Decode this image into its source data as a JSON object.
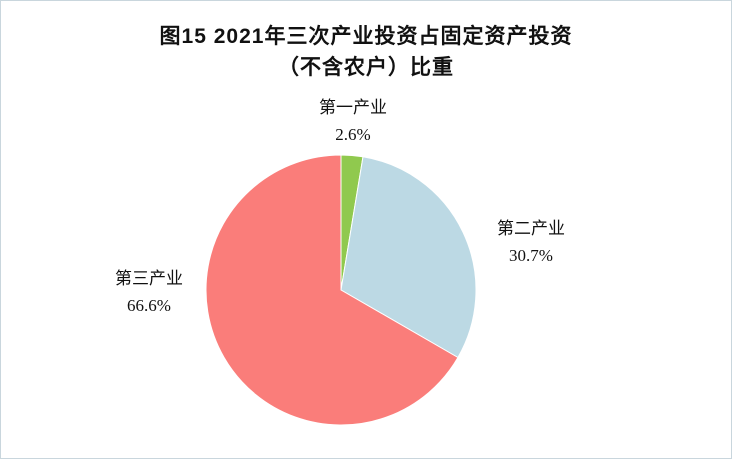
{
  "title": {
    "line1": "图15   2021年三次产业投资占固定资产投资",
    "line2": "（不含农户）比重"
  },
  "chart_data": {
    "type": "pie",
    "title": "图15 2021年三次产业投资占固定资产投资（不含农户）比重",
    "start_angle_deg": 0,
    "direction": "clockwise",
    "legend": "none",
    "labels_placement": "outside",
    "slices": [
      {
        "label": "第一产业",
        "value": 2.6,
        "pct_label": "2.6%",
        "color": "#90c94e"
      },
      {
        "label": "第二产业",
        "value": 30.7,
        "pct_label": "30.7%",
        "color": "#bcd9e4"
      },
      {
        "label": "第三产业",
        "value": 66.6,
        "pct_label": "66.6%",
        "color": "#fa7d7a"
      }
    ]
  },
  "colors": {
    "background": "#ffffff",
    "border": "#c9d6dd",
    "text": "#111111",
    "slice_stroke": "#ffffff"
  }
}
